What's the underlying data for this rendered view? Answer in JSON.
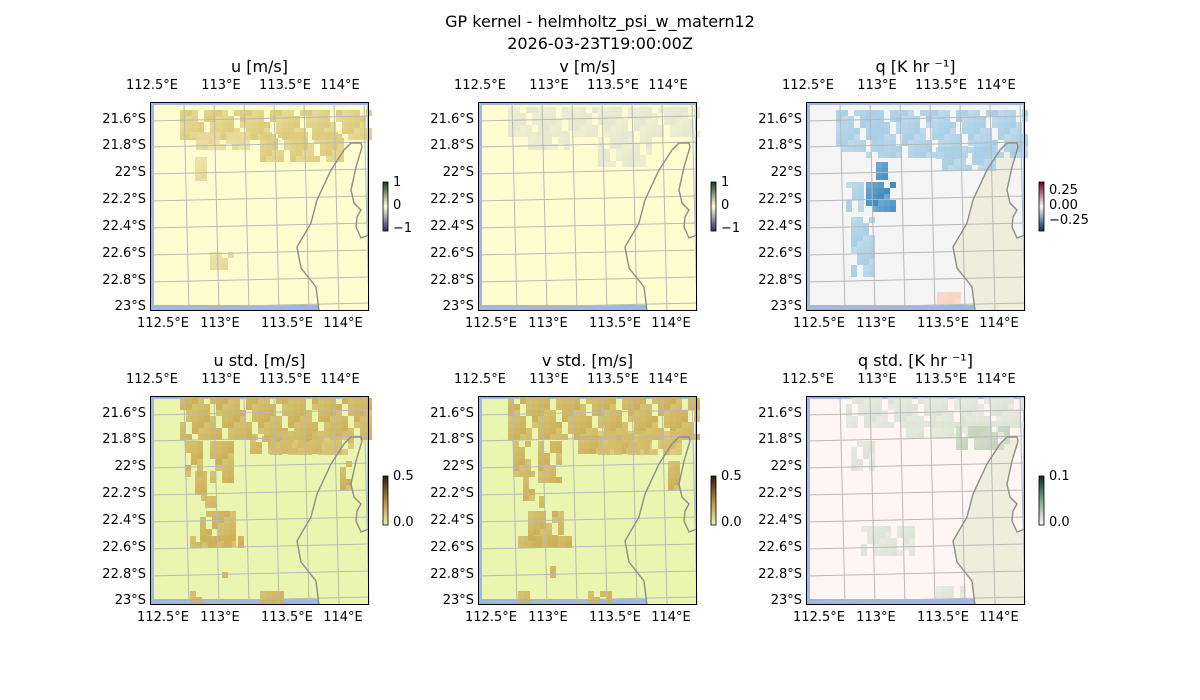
{
  "figure": {
    "title": "GP kernel - helmholtz_psi_w_matern12",
    "timestamp": "2026-03-23T19:00:00Z"
  },
  "colors": {
    "ocean": "#9db8e2",
    "land": "#efeedc",
    "grid": "#b8b8b8",
    "coast": "#8c8c8c"
  },
  "chart_data": {
    "type": "heatmap",
    "lon_ticks": [
      "112.5°E",
      "113°E",
      "113.5°E",
      "114°E"
    ],
    "lat_ticks": [
      "21.6°S",
      "21.8°S",
      "22°S",
      "22.2°S",
      "22.4°S",
      "22.6°S",
      "22.8°S",
      "23°S"
    ],
    "panels": [
      {
        "title": "u [m/s]",
        "cbar_ticks": [
          "1",
          "0",
          "−1"
        ],
        "vmin": -1,
        "vmax": 1,
        "bg": "#fffdd0",
        "patch": "#e8d99a",
        "patch2": "#dccb7c",
        "cbar": [
          "#1a3a2a",
          "#fffdd0",
          "#2a2a6a"
        ]
      },
      {
        "title": "v [m/s]",
        "cbar_ticks": [
          "1",
          "0",
          "−1"
        ],
        "vmin": -1,
        "vmax": 1,
        "bg": "#fffdd0",
        "patch": "#e6e8d0",
        "patch2": "#d8dfd0",
        "cbar": [
          "#1a3a2a",
          "#fffdd0",
          "#2a2a6a"
        ]
      },
      {
        "title": "q [K hr ⁻¹]",
        "cbar_ticks": [
          "0.25",
          "0.00",
          "−0.25"
        ],
        "vmin": -0.4,
        "vmax": 0.4,
        "bg": "#f5f5f5",
        "patch": "#a9cfe5",
        "patch2": "#3f8cc2",
        "cbar": [
          "#67001f",
          "#f7f7f7",
          "#053061"
        ]
      },
      {
        "title": "u std. [m/s]",
        "cbar_ticks": [
          "0.5",
          "0.0"
        ],
        "vmin": 0,
        "vmax": 0.5,
        "bg": "#eaf5b0",
        "patch": "#cdb05a",
        "patch2": "#d4bc6c",
        "cbar": [
          "#2b1a08",
          "#b58a3a",
          "#eaf5b0"
        ]
      },
      {
        "title": "v std. [m/s]",
        "cbar_ticks": [
          "0.5",
          "0.0"
        ],
        "vmin": 0,
        "vmax": 0.5,
        "bg": "#eaf5b0",
        "patch": "#cdb05a",
        "patch2": "#d4bc6c",
        "cbar": [
          "#2b1a08",
          "#b58a3a",
          "#eaf5b0"
        ]
      },
      {
        "title": "q std. [K hr ⁻¹]",
        "cbar_ticks": [
          "0.1",
          "0.0"
        ],
        "vmin": 0,
        "vmax": 0.1,
        "bg": "#fff5f2",
        "patch": "#dfe5d6",
        "patch2": "#c6d4bc",
        "cbar": [
          "#0a2a2a",
          "#7aa890",
          "#fff5f2"
        ]
      }
    ]
  }
}
